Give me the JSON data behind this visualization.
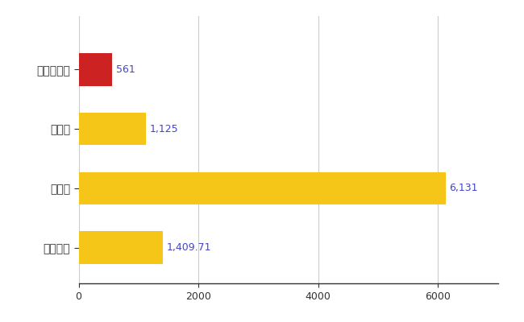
{
  "categories": [
    "隠岐の島町",
    "県平均",
    "県最大",
    "全国平均"
  ],
  "values": [
    561,
    1125,
    6131,
    1409.71
  ],
  "bar_colors": [
    "#cc2222",
    "#f5c518",
    "#f5c518",
    "#f5c518"
  ],
  "labels": [
    "561",
    "1,125",
    "6,131",
    "1,409.71"
  ],
  "xlim": [
    0,
    7000
  ],
  "xticks": [
    0,
    2000,
    4000,
    6000
  ],
  "background_color": "#ffffff",
  "grid_color": "#cccccc",
  "label_color": "#4444cc",
  "bar_height": 0.55
}
